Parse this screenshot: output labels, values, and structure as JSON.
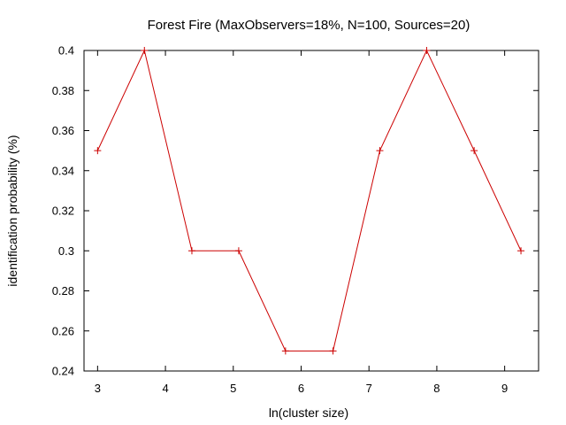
{
  "chart_data": {
    "type": "line",
    "title": "Forest Fire (MaxObservers=18%, N=100, Sources=20)",
    "xlabel": "ln(cluster size)",
    "ylabel": "identification probability (%)",
    "xlim": [
      2.8,
      9.5
    ],
    "ylim": [
      0.24,
      0.4
    ],
    "xticks": [
      3,
      4,
      5,
      6,
      7,
      8,
      9
    ],
    "yticks": [
      0.24,
      0.26,
      0.28,
      0.3,
      0.32,
      0.34,
      0.36,
      0.38,
      0.4
    ],
    "ytick_labels": [
      "0.24",
      "0.26",
      "0.28",
      "0.3",
      "0.32",
      "0.34",
      "0.36",
      "0.38",
      "0.4"
    ],
    "grid": false,
    "series": [
      {
        "color": "#cc0000",
        "marker": "plus",
        "x": [
          3.0,
          3.69,
          4.39,
          5.08,
          5.77,
          6.47,
          7.16,
          7.85,
          8.55,
          9.24
        ],
        "y": [
          0.35,
          0.4,
          0.3,
          0.3,
          0.25,
          0.25,
          0.35,
          0.4,
          0.35,
          0.3
        ]
      }
    ]
  }
}
